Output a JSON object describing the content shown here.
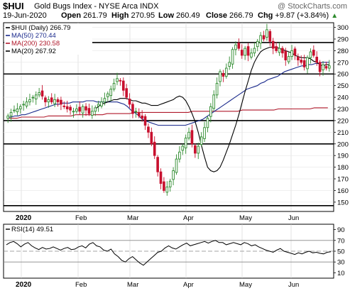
{
  "header": {
    "symbol": "$HUI",
    "name": "Gold Bugs Index - NYSE Arca INDX",
    "watermark": "@ StockCharts.com",
    "date": "19-Jun-2020",
    "open_label": "Open",
    "open": "261.79",
    "high_label": "High",
    "high": "270.95",
    "low_label": "Low",
    "low": "260.49",
    "close_label": "Close",
    "close": "266.79",
    "chg_label": "Chg",
    "chg": "+9.87 (+3.84%)",
    "chg_arrow": "▲"
  },
  "legend": [
    {
      "label": "$HUI (Daily)",
      "value": "266.79",
      "color": "#000000"
    },
    {
      "label": "MA(50)",
      "value": "270.44",
      "color": "#1a2a8c"
    },
    {
      "label": "MA(200)",
      "value": "230.58",
      "color": "#b0182a"
    },
    {
      "label": "MA(20)",
      "value": "267.92",
      "color": "#000000"
    }
  ],
  "rsi_label": "RSI(14)",
  "rsi_value": "49.51",
  "x_labels": [
    "2020",
    "Feb",
    "Mar",
    "Apr",
    "May",
    "Jun"
  ],
  "rsi_ticks": [
    "90",
    "70",
    "50",
    "30",
    "10"
  ],
  "chart_data": {
    "type": "candlestick",
    "x_axis": "Dec 2019 - Jun 2020 (daily)",
    "ylim": [
      142,
      304
    ],
    "y_ticks": [
      150,
      160,
      170,
      180,
      190,
      200,
      210,
      220,
      230,
      240,
      250,
      260,
      270,
      280,
      290,
      300
    ],
    "horizontal_lines": [
      287,
      260,
      220,
      200,
      147
    ],
    "colors": {
      "up": "#2e8b2e",
      "down": "#c8102e",
      "ma50": "#1a2a8c",
      "ma200": "#b0182a",
      "ma20": "#000000"
    },
    "closes": [
      224,
      227,
      229,
      230,
      232,
      234,
      236,
      238,
      240,
      242,
      244,
      241,
      236,
      238,
      236,
      238,
      236,
      234,
      232,
      230,
      229,
      228,
      230,
      228,
      232,
      229,
      226,
      228,
      231,
      234,
      236,
      239,
      243,
      247,
      252,
      256,
      254,
      246,
      240,
      234,
      226,
      228,
      224,
      222,
      216,
      210,
      200,
      190,
      176,
      166,
      160,
      163,
      168,
      177,
      187,
      193,
      198,
      205,
      210,
      200,
      192,
      198,
      206,
      214,
      222,
      232,
      242,
      252,
      262,
      258,
      265,
      270,
      281,
      285,
      282,
      276,
      282,
      276,
      278,
      282,
      288,
      293,
      290,
      298,
      288,
      282,
      280,
      282,
      278,
      272,
      275,
      280,
      276,
      272,
      270,
      266,
      274,
      279,
      276,
      270,
      262,
      268,
      265,
      267
    ],
    "ma50": [
      223,
      223,
      224,
      224,
      225,
      225,
      226,
      227,
      228,
      229,
      230,
      231,
      232,
      233,
      234,
      234,
      235,
      235,
      235,
      236,
      236,
      236,
      236,
      237,
      237,
      237,
      236,
      236,
      236,
      236,
      236,
      236,
      236,
      235,
      234,
      232,
      229,
      227,
      225,
      222,
      220,
      219,
      218,
      217,
      216,
      216,
      216,
      216,
      216,
      216,
      216,
      216,
      216,
      217,
      218,
      219,
      220,
      221,
      223,
      225,
      227,
      229,
      231,
      233,
      235,
      237,
      239,
      241,
      243,
      245,
      247,
      248,
      249,
      250,
      252,
      253,
      255,
      256,
      257,
      258,
      260,
      262,
      263,
      264,
      265,
      266,
      267,
      267,
      268,
      268,
      269,
      269,
      270,
      270,
      270
    ],
    "ma200": [
      222,
      222,
      222,
      223,
      223,
      223,
      223,
      223,
      223,
      224,
      224,
      224,
      224,
      224,
      224,
      225,
      225,
      225,
      225,
      225,
      225,
      225,
      226,
      226,
      226,
      226,
      226,
      226,
      227,
      227,
      227,
      227,
      227,
      227,
      227,
      227,
      227,
      227,
      227,
      227,
      227,
      228,
      228,
      228,
      228,
      228,
      228,
      228,
      228,
      228,
      228,
      228,
      229,
      229,
      229,
      229,
      229,
      229,
      229,
      229,
      230,
      230,
      230,
      230,
      230,
      230,
      230,
      230,
      231,
      231,
      231,
      231
    ],
    "ma20": [
      230,
      232,
      234,
      235,
      236,
      237,
      238,
      238,
      239,
      239,
      239,
      238,
      237,
      237,
      236,
      235,
      235,
      234,
      233,
      233,
      233,
      234,
      235,
      236,
      237,
      238,
      240,
      241,
      240,
      237,
      232,
      226,
      219,
      210,
      199,
      189,
      180,
      177,
      176,
      177,
      180,
      186,
      193,
      200,
      208,
      216,
      225,
      235,
      245,
      254,
      263,
      270,
      275,
      279,
      281,
      282,
      283,
      283,
      283,
      282,
      281,
      280,
      279,
      278,
      276,
      275,
      274,
      274,
      274,
      273,
      271,
      270,
      268,
      267,
      268,
      268
    ],
    "rsi": {
      "ylim": [
        0,
        100
      ],
      "levels": [
        70,
        30
      ],
      "centerline": 50,
      "values": [
        62,
        66,
        68,
        64,
        58,
        63,
        66,
        60,
        56,
        53,
        57,
        54,
        55,
        58,
        55,
        52,
        55,
        57,
        53,
        54,
        58,
        60,
        56,
        63,
        66,
        60,
        58,
        52,
        50,
        54,
        45,
        40,
        33,
        30,
        36,
        40,
        34,
        28,
        24,
        30,
        36,
        42,
        48,
        50,
        56,
        60,
        56,
        54,
        58,
        62,
        65,
        60,
        62,
        64,
        66,
        68,
        65,
        68,
        70,
        66,
        66,
        62,
        64,
        66,
        64,
        62,
        66,
        64,
        60,
        62,
        58,
        55,
        52,
        50,
        48,
        52,
        55,
        50,
        48,
        46,
        44,
        47,
        45,
        48,
        50,
        47,
        48,
        46,
        45,
        48,
        49
      ]
    }
  }
}
